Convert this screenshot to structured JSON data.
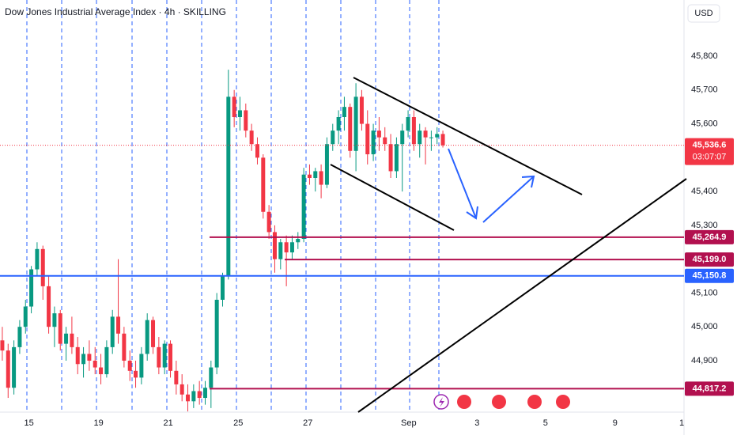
{
  "chart_data": {
    "type": "candlestick",
    "title": "Dow Jones Industrial Average Index · 4h · SKILLING",
    "currency": "USD",
    "up_color": "#089981",
    "down_color": "#f23645",
    "open": [
      44960,
      44930,
      44820,
      44940,
      45000,
      45060,
      45170,
      45230,
      45120,
      45000,
      45040,
      44950,
      44980,
      44940,
      44890,
      44920,
      44900,
      44880,
      44860,
      44940,
      45030,
      44980,
      44900,
      44870,
      44850,
      44920,
      45020,
      44940,
      44880,
      44950,
      44870,
      44830,
      44800,
      44780,
      44810,
      44790,
      44820,
      44880,
      45080,
      45150,
      45680,
      45620,
      45640,
      45580,
      45540,
      45500,
      45340,
      45280,
      45200,
      45250,
      45220,
      45250,
      45260,
      45450,
      45440,
      45460,
      45420,
      45540,
      45580,
      45620,
      45650,
      45520,
      45680,
      45600,
      45510,
      45580,
      45560,
      45540,
      45460,
      45540,
      45580,
      45620,
      45540,
      45580,
      45560,
      45560,
      45570
    ],
    "high": [
      45000,
      44950,
      44960,
      45020,
      45080,
      45180,
      45250,
      45240,
      45150,
      45060,
      45050,
      45000,
      45030,
      44970,
      44940,
      44960,
      44940,
      44920,
      44960,
      45050,
      45200,
      45000,
      44930,
      44900,
      44940,
      45040,
      45030,
      44970,
      44960,
      44960,
      44900,
      44860,
      44830,
      44830,
      44840,
      44840,
      44900,
      45100,
      45160,
      45760,
      45700,
      45680,
      45660,
      45600,
      45560,
      45510,
      45360,
      45300,
      45260,
      45270,
      45270,
      45280,
      45470,
      45480,
      45470,
      45480,
      45560,
      45600,
      45640,
      45680,
      45660,
      45720,
      45700,
      45640,
      45600,
      45620,
      45590,
      45570,
      45560,
      45600,
      45640,
      45640,
      45600,
      45590,
      45580,
      45590,
      45580
    ],
    "low": [
      44900,
      44790,
      44800,
      44920,
      44980,
      45040,
      45150,
      45080,
      44980,
      44940,
      44930,
      44900,
      44920,
      44860,
      44850,
      44870,
      44860,
      44830,
      44850,
      44920,
      44950,
      44880,
      44840,
      44820,
      44830,
      44900,
      44920,
      44860,
      44860,
      44850,
      44800,
      44780,
      44750,
      44760,
      44770,
      44770,
      44760,
      44860,
      45060,
      45140,
      45590,
      45580,
      45560,
      45520,
      45480,
      45320,
      45260,
      45160,
      45170,
      45120,
      45200,
      45230,
      45250,
      45420,
      45400,
      45380,
      45410,
      45520,
      45540,
      45580,
      45500,
      45460,
      45580,
      45480,
      45490,
      45520,
      45520,
      45440,
      45440,
      45400,
      45560,
      45520,
      45500,
      45480,
      45520,
      45540,
      45530
    ],
    "close": [
      44930,
      44820,
      44940,
      45000,
      45060,
      45170,
      45230,
      45120,
      45000,
      45040,
      44950,
      44980,
      44940,
      44890,
      44920,
      44900,
      44880,
      44860,
      44940,
      45030,
      44980,
      44900,
      44870,
      44850,
      44920,
      45020,
      44940,
      44880,
      44950,
      44870,
      44830,
      44800,
      44780,
      44810,
      44790,
      44820,
      44880,
      45080,
      45150,
      45680,
      45620,
      45640,
      45580,
      45540,
      45500,
      45340,
      45280,
      45200,
      45250,
      45220,
      45250,
      45260,
      45450,
      45440,
      45460,
      45420,
      45540,
      45580,
      45620,
      45650,
      45520,
      45680,
      45600,
      45510,
      45580,
      45560,
      45540,
      45460,
      45540,
      45580,
      45620,
      45540,
      45580,
      45560,
      45560,
      45570,
      45536.6
    ],
    "xlim": [
      -0.4,
      117.6
    ],
    "xticks": [
      {
        "value": 4.6,
        "label": "15"
      },
      {
        "value": 16.6,
        "label": "19"
      },
      {
        "value": 28.6,
        "label": "21"
      },
      {
        "value": 40.7,
        "label": "25"
      },
      {
        "value": 52.7,
        "label": "27"
      },
      {
        "value": 70.1,
        "label": "Sep"
      },
      {
        "value": 81.9,
        "label": "3"
      },
      {
        "value": 93.7,
        "label": "5"
      },
      {
        "value": 105.7,
        "label": "9"
      },
      {
        "value": 117.2,
        "label": "1"
      }
    ],
    "ylim": [
      44748,
      45966
    ],
    "yticks": [
      {
        "value": 44900,
        "label": "44,900"
      },
      {
        "value": 45000,
        "label": "45,000"
      },
      {
        "value": 45100,
        "label": "45,100"
      },
      {
        "value": 45300,
        "label": "45,300"
      },
      {
        "value": 45400,
        "label": "45,400"
      },
      {
        "value": 45600,
        "label": "45,600"
      },
      {
        "value": 45700,
        "label": "45,700"
      },
      {
        "value": 45800,
        "label": "45,800"
      }
    ],
    "last_price": {
      "value": 45536.6,
      "label": "45,536.6",
      "countdown": "03:07:07",
      "color": "#f23645"
    },
    "levels": [
      {
        "value": 45264.9,
        "label": "45,264.9",
        "color": "#b2104f",
        "from": 265
      },
      {
        "value": 45199.0,
        "label": "45,199.0",
        "color": "#b2104f",
        "from": 360
      },
      {
        "value": 45150.8,
        "label": "45,150.8",
        "color": "#2962ff",
        "from": 0
      },
      {
        "value": 44817.2,
        "label": "44,817.2",
        "color": "#b2104f",
        "from": 265
      }
    ]
  }
}
